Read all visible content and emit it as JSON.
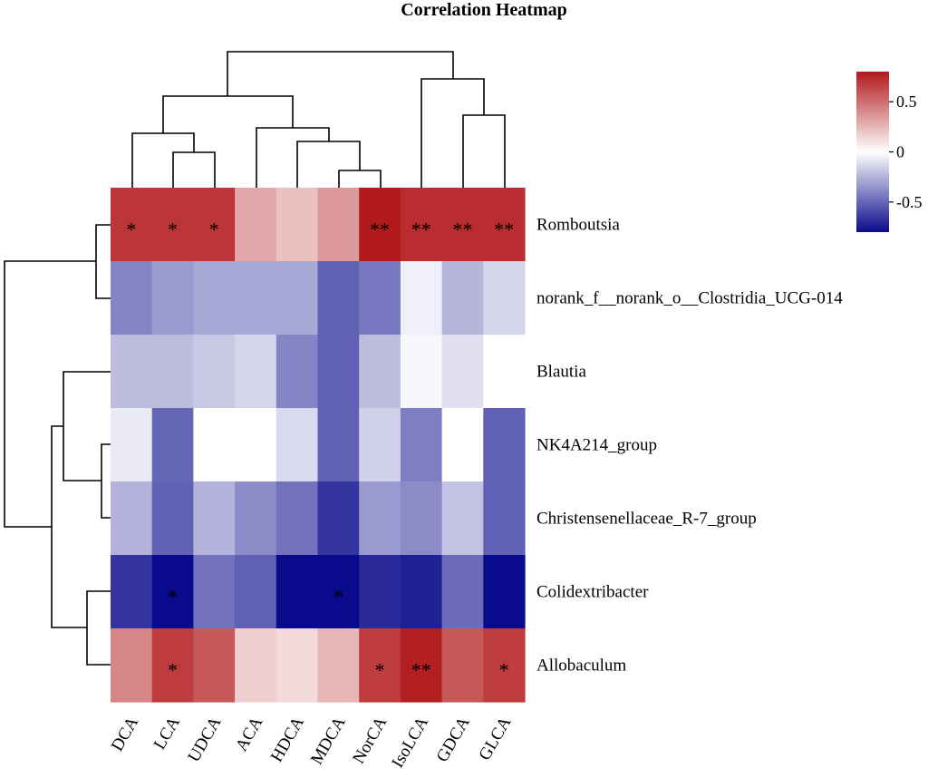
{
  "chart_data": {
    "type": "heatmap",
    "title": "Correlation Heatmap",
    "columns": [
      "DCA",
      "LCA",
      "UDCA",
      "ACA",
      "HDCA",
      "MDCA",
      "NorCA",
      "IsoLCA",
      "GDCA",
      "GLCA"
    ],
    "rows": [
      "Romboutsia",
      "norank_f__norank_o__Clostridia_UCG-014",
      "Blautia",
      "NK4A214_group",
      "Christensenellaceae_R-7_group",
      "Colidextribacter",
      "Allobaculum"
    ],
    "values": [
      [
        0.7,
        0.7,
        0.7,
        0.3,
        0.22,
        0.35,
        0.8,
        0.73,
        0.73,
        0.73
      ],
      [
        -0.4,
        -0.33,
        -0.28,
        -0.28,
        -0.28,
        -0.52,
        -0.44,
        -0.05,
        -0.24,
        -0.14
      ],
      [
        -0.22,
        -0.22,
        -0.18,
        -0.14,
        -0.4,
        -0.52,
        -0.22,
        -0.03,
        -0.1,
        0.0
      ],
      [
        -0.07,
        -0.5,
        0.0,
        0.0,
        -0.12,
        -0.52,
        -0.15,
        -0.42,
        0.0,
        -0.52
      ],
      [
        -0.25,
        -0.52,
        -0.25,
        -0.38,
        -0.46,
        -0.66,
        -0.33,
        -0.38,
        -0.2,
        -0.52
      ],
      [
        -0.66,
        -0.86,
        -0.46,
        -0.52,
        -0.84,
        -0.86,
        -0.7,
        -0.73,
        -0.48,
        -0.8
      ],
      [
        0.42,
        0.68,
        0.58,
        0.17,
        0.13,
        0.25,
        0.68,
        0.78,
        0.58,
        0.68
      ]
    ],
    "significance": [
      [
        "*",
        "*",
        "*",
        "",
        "",
        "",
        "**",
        "**",
        "**",
        "**"
      ],
      [
        "",
        "",
        "",
        "",
        "",
        "",
        "",
        "",
        "",
        ""
      ],
      [
        "",
        "",
        "",
        "",
        "",
        "",
        "",
        "",
        "",
        ""
      ],
      [
        "",
        "",
        "",
        "",
        "",
        "",
        "",
        "",
        "",
        ""
      ],
      [
        "",
        "",
        "",
        "",
        "",
        "",
        "",
        "",
        "",
        ""
      ],
      [
        "",
        "*",
        "",
        "",
        "",
        "*",
        "",
        "",
        "",
        ""
      ],
      [
        "",
        "*",
        "",
        "",
        "",
        "",
        "*",
        "**",
        "",
        "*"
      ]
    ],
    "colorbar": {
      "range": [
        -0.8,
        0.8
      ],
      "ticks": [
        0.5,
        0,
        -0.5
      ],
      "tick_labels": [
        "0.5",
        "0",
        "-0.5"
      ],
      "colors": {
        "low": "#0a0a8c",
        "mid": "#ffffff",
        "high": "#b2191c"
      }
    }
  }
}
